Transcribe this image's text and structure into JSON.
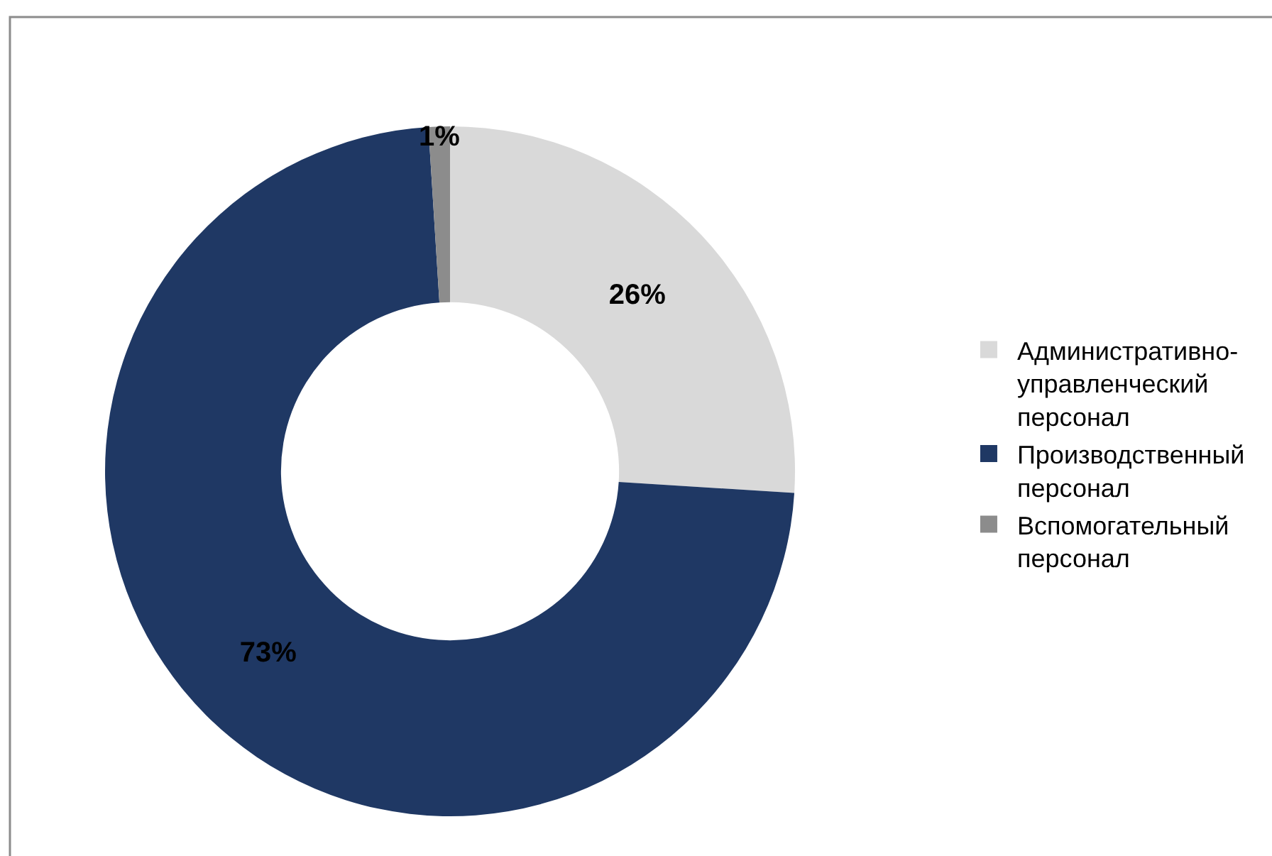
{
  "chart_data": {
    "type": "donut",
    "categories": [
      "Административно-управленческий персонал",
      "Производственный персонал",
      "Вспомогательный персонал"
    ],
    "values": [
      26,
      73,
      1
    ],
    "colors": [
      "#d9d9d9",
      "#1f3864",
      "#8c8c8c"
    ],
    "value_labels": [
      "26%",
      "73%",
      "1%"
    ],
    "legend": "right"
  }
}
